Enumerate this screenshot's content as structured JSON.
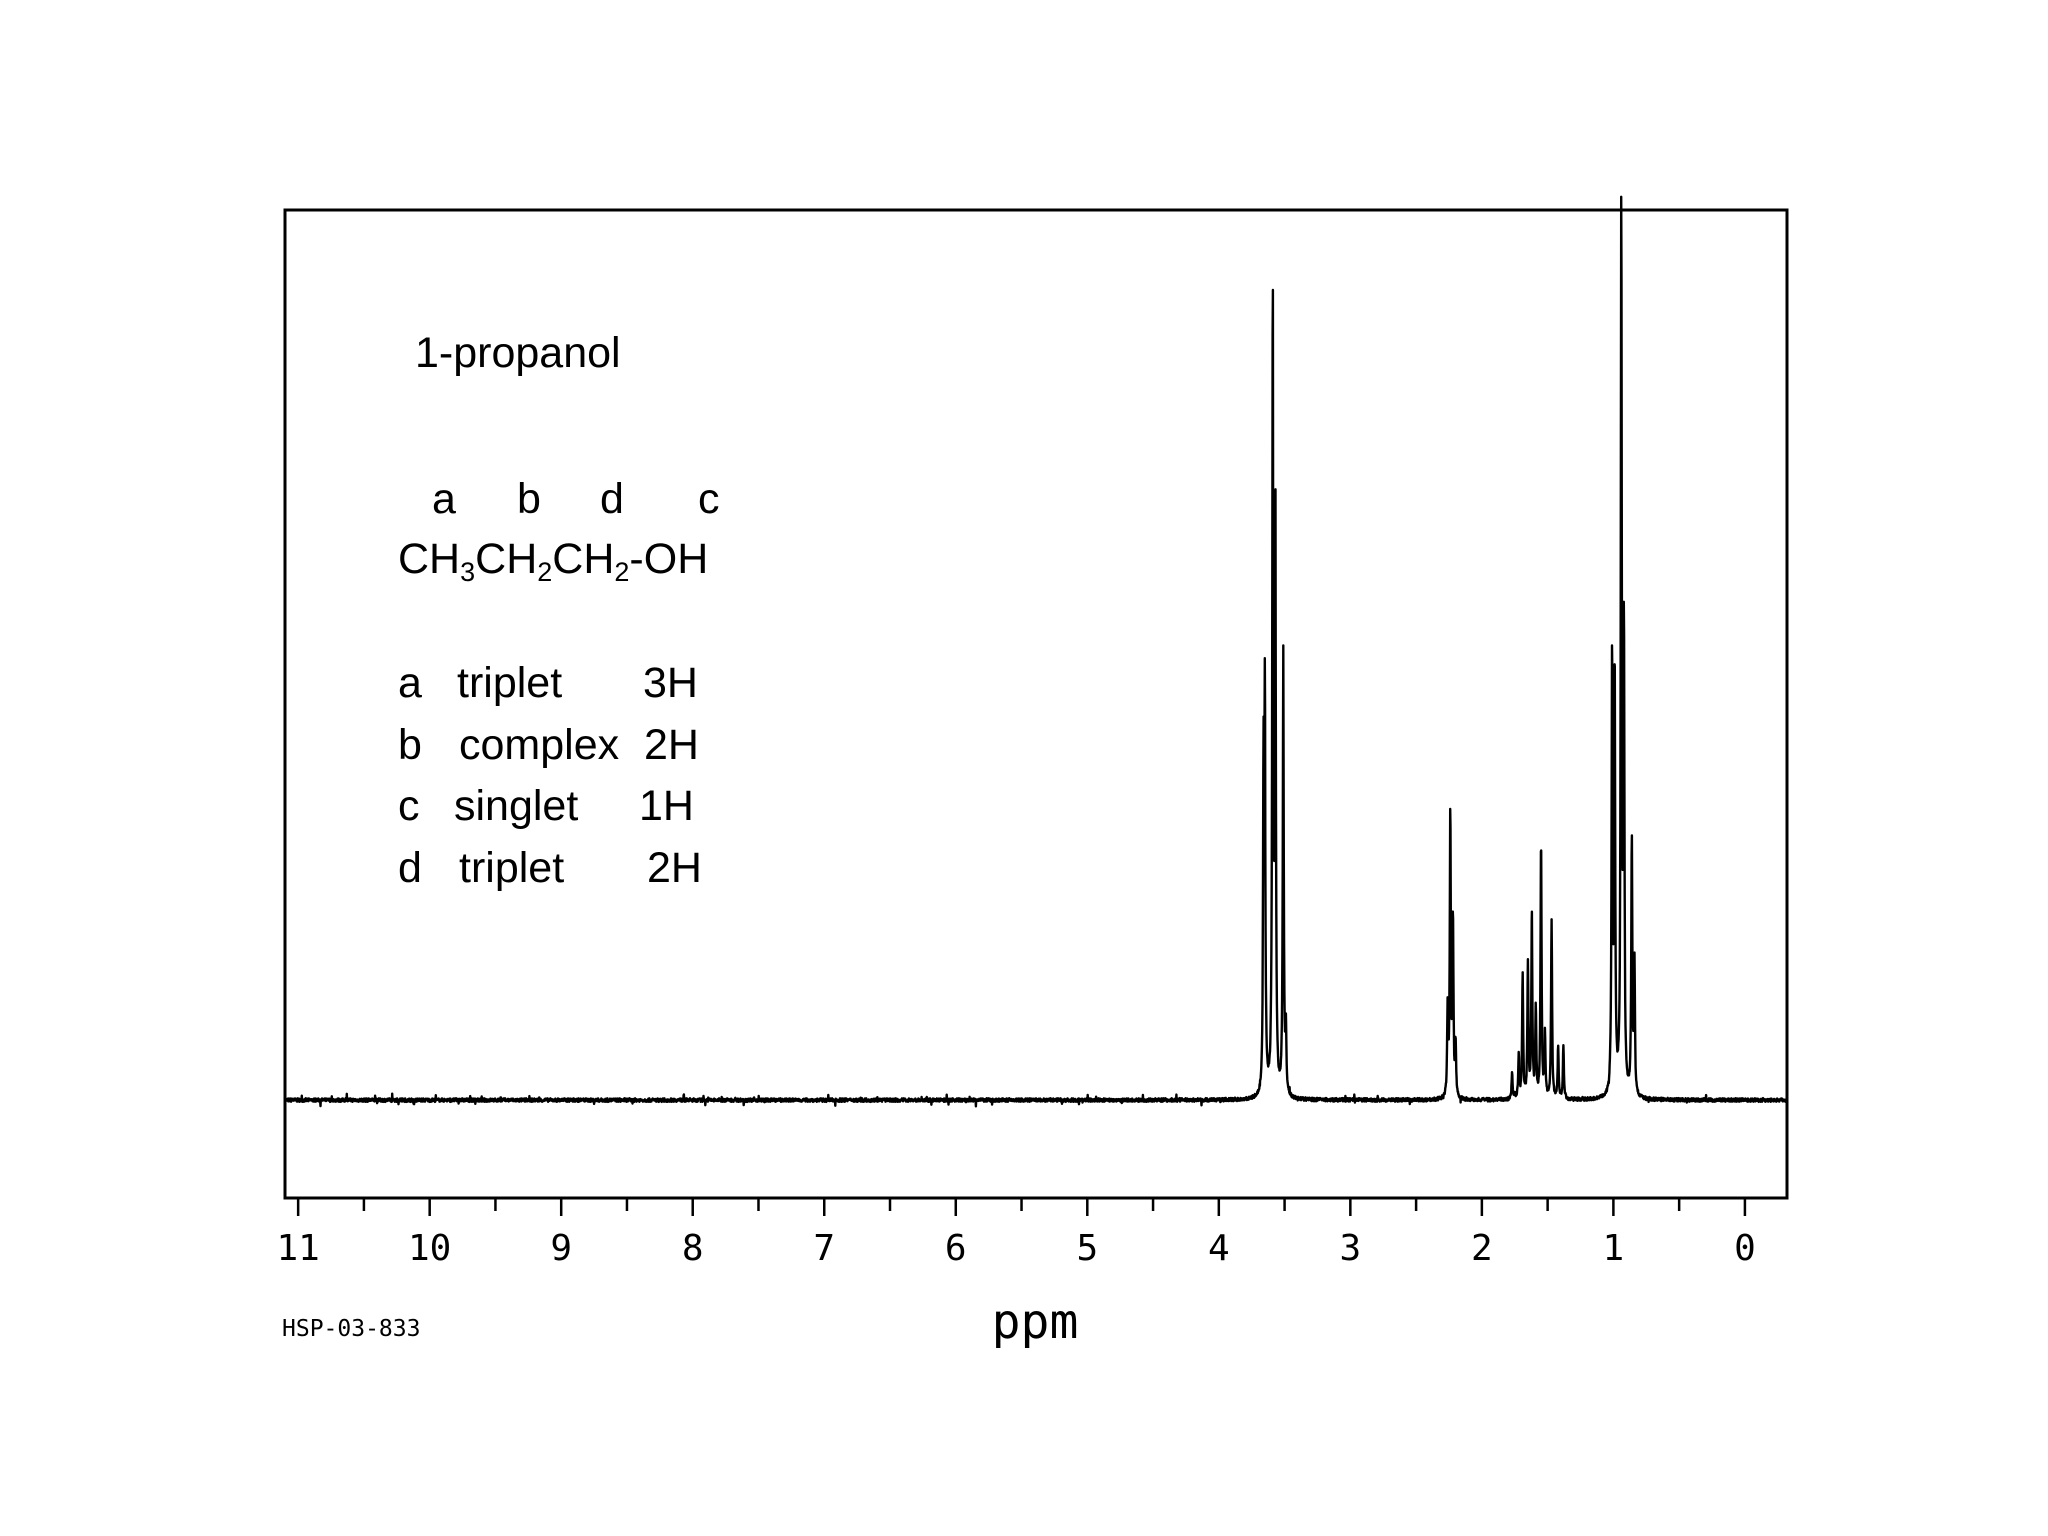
{
  "annotation": {
    "compound": "1-propanol",
    "formula_letters": [
      "a",
      "b",
      "d",
      "c"
    ],
    "formula": {
      "p1": "CH",
      "s1": "3",
      "p2": "CH",
      "s2": "2",
      "p3": "CH",
      "s3": "2",
      "p4": "-OH"
    },
    "assignments": [
      {
        "label": "a",
        "multiplicity": "triplet",
        "integration": "3H"
      },
      {
        "label": "b",
        "multiplicity": "complex",
        "integration": "2H"
      },
      {
        "label": "c",
        "multiplicity": "singlet",
        "integration": "1H"
      },
      {
        "label": "d",
        "multiplicity": "triplet",
        "integration": "2H"
      }
    ]
  },
  "chart_data": {
    "type": "line",
    "title": "1-propanol",
    "xlabel": "ppm",
    "ylabel": "",
    "xlim": [
      11.1,
      -0.32
    ],
    "x_reversed": true,
    "ylim": [
      -0.11,
      1.0
    ],
    "grid": false,
    "xticks": [
      11,
      10,
      9,
      8,
      7,
      6,
      5,
      4,
      3,
      2,
      1,
      0
    ],
    "minor_tick_step": 0.5,
    "baseline": 0,
    "peaks": [
      {
        "group": "d",
        "multiplicity": "triplet",
        "center": 3.58,
        "lines": [
          {
            "x": 3.66,
            "h": 0.35
          },
          {
            "x": 3.65,
            "h": 0.43
          },
          {
            "x": 3.59,
            "h": 0.9
          },
          {
            "x": 3.57,
            "h": 0.65
          },
          {
            "x": 3.51,
            "h": 0.5
          },
          {
            "x": 3.49,
            "h": 0.07
          }
        ]
      },
      {
        "group": "c",
        "multiplicity": "singlet",
        "center": 2.23,
        "lines": [
          {
            "x": 2.24,
            "h": 0.32
          },
          {
            "x": 2.22,
            "h": 0.2
          },
          {
            "x": 2.26,
            "h": 0.1
          },
          {
            "x": 2.2,
            "h": 0.06
          }
        ]
      },
      {
        "group": "b",
        "multiplicity": "complex",
        "center": 1.56,
        "lines": [
          {
            "x": 1.77,
            "h": 0.03
          },
          {
            "x": 1.72,
            "h": 0.05
          },
          {
            "x": 1.69,
            "h": 0.14
          },
          {
            "x": 1.65,
            "h": 0.15
          },
          {
            "x": 1.62,
            "h": 0.21
          },
          {
            "x": 1.59,
            "h": 0.1
          },
          {
            "x": 1.55,
            "h": 0.29
          },
          {
            "x": 1.52,
            "h": 0.07
          },
          {
            "x": 1.47,
            "h": 0.2
          },
          {
            "x": 1.42,
            "h": 0.06
          },
          {
            "x": 1.38,
            "h": 0.06
          }
        ]
      },
      {
        "group": "a",
        "multiplicity": "triplet",
        "center": 0.93,
        "lines": [
          {
            "x": 1.01,
            "h": 0.5
          },
          {
            "x": 0.99,
            "h": 0.48
          },
          {
            "x": 0.94,
            "h": 1.0
          },
          {
            "x": 0.92,
            "h": 0.52
          },
          {
            "x": 0.86,
            "h": 0.29
          },
          {
            "x": 0.84,
            "h": 0.15
          }
        ]
      }
    ]
  },
  "footer": {
    "spectrum_id": "HSP-03-833"
  }
}
